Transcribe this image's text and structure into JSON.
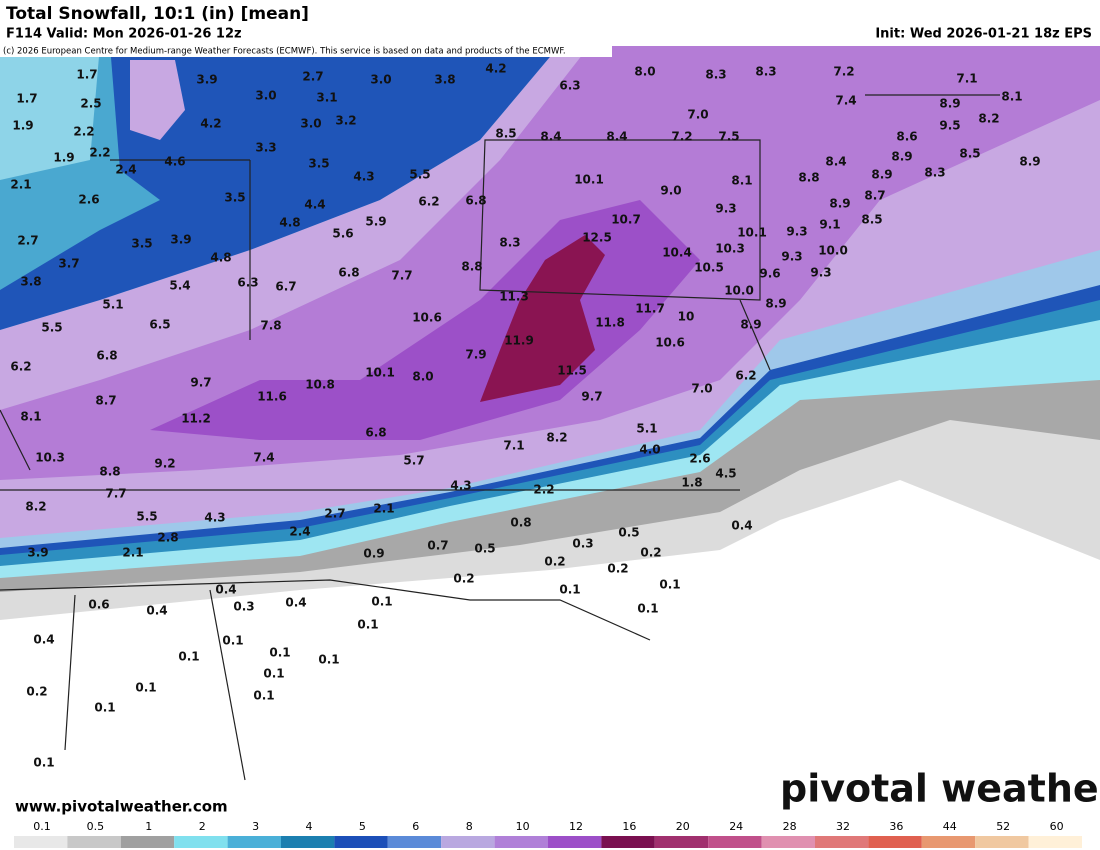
{
  "header": {
    "title": "Total Snowfall, 10:1 (in) [mean]",
    "valid": "F114 Valid: Mon 2026-01-26 12z",
    "init": "Init: Wed 2026-01-21 18z EPS",
    "credit": "(c) 2026 European Centre for Medium-range Weather Forecasts (ECMWF). This service is based on data and products of the ECMWF."
  },
  "footer": {
    "url": "www.pivotalweather.com",
    "logo": "pivotal weather"
  },
  "colorbar": {
    "labels": [
      "0.1",
      "0.5",
      "1",
      "2",
      "3",
      "4",
      "5",
      "6",
      "8",
      "10",
      "12",
      "16",
      "20",
      "24",
      "28",
      "32",
      "36",
      "44",
      "52",
      "60"
    ],
    "colors": [
      "#e8e8e8",
      "#c8c8c8",
      "#a0a0a0",
      "#80e0ee",
      "#4ab0d8",
      "#1c7fb0",
      "#1c4fb8",
      "#5b8ad8",
      "#b9a8e0",
      "#b080d8",
      "#9c4fc8",
      "#7a1050",
      "#a0306e",
      "#c0508a",
      "#e090b0",
      "#e07878",
      "#e06050",
      "#e89870",
      "#f0c8a0",
      "#fff0d8"
    ]
  },
  "points": [
    "1.7",
    "3.9",
    "2.7",
    "3.0",
    "3.8",
    "4.2",
    "6.3",
    "8.0",
    "8.3",
    "8.3",
    "7.2",
    "7.1",
    "1.7",
    "2.5",
    "3.0",
    "3.1",
    "7.4",
    "8.1",
    "8.9",
    "1.9",
    "4.2",
    "3.0",
    "3.2",
    "7.0",
    "9.5",
    "8.2",
    "2.2",
    "8.5",
    "8.4",
    "8.4",
    "7.2",
    "7.5",
    "8.6",
    "1.9",
    "2.2",
    "3.3",
    "8.9",
    "8.5",
    "8.9",
    "2.4",
    "4.6",
    "3.5",
    "4.3",
    "5.5",
    "8.4",
    "8.9",
    "8.3",
    "2.1",
    "10.1",
    "9.0",
    "8.1",
    "8.8",
    "2.6",
    "3.5",
    "4.4",
    "6.2",
    "6.8",
    "8.7",
    "8.9",
    "9.3",
    "10.7",
    "4.8",
    "5.9",
    "8.5",
    "9.1",
    "2.7",
    "3.5",
    "3.9",
    "5.6",
    "12.5",
    "10.1",
    "9.3",
    "8.3",
    "10.4",
    "10.3",
    "10.0",
    "3.7",
    "4.8",
    "8.8",
    "10.5",
    "9.3",
    "6.8",
    "7.7",
    "9.6",
    "9.3",
    "3.8",
    "5.4",
    "6.3",
    "6.7",
    "11.3",
    "10.0",
    "5.1",
    "8.9",
    "5.5",
    "6.5",
    "7.8",
    "10.6",
    "11.7",
    "10",
    "11.8",
    "8.9",
    "6.8",
    "11.9",
    "10.6",
    "6.2",
    "7.9",
    "10.1",
    "8.0",
    "11.5",
    "6.2",
    "9.7",
    "10.8",
    "7.0",
    "8.7",
    "11.6",
    "9.7",
    "8.1",
    "11.2",
    "6.8",
    "8.2",
    "5.1",
    "10.3",
    "9.2",
    "7.4",
    "5.7",
    "7.1",
    "4.0",
    "2.6",
    "8.8",
    "4.5",
    "4.3",
    "2.2",
    "1.8",
    "7.7",
    "8.2",
    "2.1",
    "2.7",
    "5.5",
    "4.3",
    "0.8",
    "0.5",
    "0.4",
    "2.4",
    "2.8",
    "0.3",
    "3.9",
    "2.1",
    "0.9",
    "0.7",
    "0.5",
    "0.2",
    "0.2",
    "0.2",
    "0.2",
    "0.1",
    "0.1",
    "0.4",
    "0.6",
    "0.4",
    "0.3",
    "0.4",
    "0.1",
    "0.1",
    "0.1",
    "0.4",
    "0.1",
    "0.1",
    "0.1",
    "0.1",
    "0.1",
    "0.1",
    "0.2",
    "0.1",
    "0.1",
    "0.1"
  ]
}
